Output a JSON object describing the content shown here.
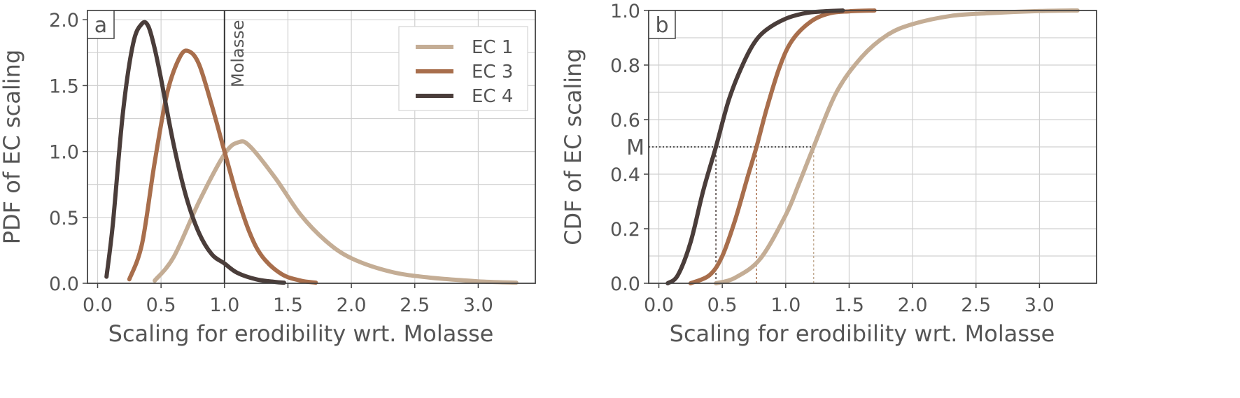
{
  "chart_data": [
    {
      "panel": "a",
      "type": "line",
      "xlabel": "Scaling for erodibility wrt. Molasse",
      "ylabel": "PDF of EC scaling",
      "xlim": [
        -0.08,
        3.45
      ],
      "ylim": [
        0,
        2.07
      ],
      "xticks": [
        0.0,
        0.5,
        1.0,
        1.5,
        2.0,
        2.5,
        3.0
      ],
      "xtick_labels": [
        "0.0",
        "0.5",
        "1.0",
        "1.5",
        "2.0",
        "2.5",
        "3.0"
      ],
      "yticks": [
        0.0,
        0.5,
        1.0,
        1.5,
        2.0
      ],
      "ytick_labels": [
        "0.0",
        "0.5",
        "1.0",
        "1.5",
        "2.0"
      ],
      "minor_grid_y": [
        0.25,
        0.75,
        1.25,
        1.75
      ],
      "vline": {
        "x": 1.0,
        "label": "Molasse"
      },
      "legend": {
        "location": "top-right",
        "entries": [
          "EC 1",
          "EC 3",
          "EC 4"
        ]
      },
      "series": [
        {
          "name": "EC 1",
          "color": "#c4ad95",
          "x": [
            0.45,
            0.6,
            0.8,
            1.0,
            1.11,
            1.2,
            1.4,
            1.6,
            1.8,
            2.0,
            2.3,
            2.6,
            3.0,
            3.3
          ],
          "y": [
            0.02,
            0.2,
            0.62,
            0.98,
            1.07,
            1.04,
            0.8,
            0.52,
            0.32,
            0.19,
            0.09,
            0.045,
            0.015,
            0.005
          ]
        },
        {
          "name": "EC 3",
          "color": "#a86e4c",
          "x": [
            0.25,
            0.35,
            0.45,
            0.55,
            0.65,
            0.72,
            0.8,
            0.9,
            1.0,
            1.1,
            1.2,
            1.3,
            1.45,
            1.6,
            1.72
          ],
          "y": [
            0.03,
            0.3,
            0.92,
            1.45,
            1.72,
            1.76,
            1.66,
            1.35,
            1.0,
            0.66,
            0.38,
            0.2,
            0.07,
            0.02,
            0.005
          ]
        },
        {
          "name": "EC 4",
          "color": "#4a3d3a",
          "x": [
            0.07,
            0.12,
            0.2,
            0.28,
            0.35,
            0.4,
            0.45,
            0.5,
            0.6,
            0.7,
            0.8,
            0.9,
            1.0,
            1.1,
            1.25,
            1.4,
            1.47
          ],
          "y": [
            0.05,
            0.45,
            1.3,
            1.82,
            1.97,
            1.95,
            1.78,
            1.55,
            1.05,
            0.65,
            0.38,
            0.22,
            0.15,
            0.08,
            0.03,
            0.01,
            0.005
          ]
        }
      ]
    },
    {
      "panel": "b",
      "type": "line",
      "xlabel": "Scaling for erodibility wrt. Molasse",
      "ylabel": "CDF of EC scaling",
      "xlim": [
        -0.08,
        3.45
      ],
      "ylim": [
        0,
        1.0
      ],
      "xticks": [
        0.0,
        0.5,
        1.0,
        1.5,
        2.0,
        2.5,
        3.0
      ],
      "xtick_labels": [
        "0.0",
        "0.5",
        "1.0",
        "1.5",
        "2.0",
        "2.5",
        "3.0"
      ],
      "yticks": [
        0.0,
        0.2,
        0.4,
        0.6,
        0.8,
        1.0
      ],
      "ytick_labels": [
        "0.0",
        "0.2",
        "0.4",
        "0.6",
        "0.8",
        "1.0"
      ],
      "minor_grid_y": [
        0.1,
        0.3,
        0.5,
        0.7,
        0.9
      ],
      "median": {
        "label": "M",
        "y": 0.5,
        "x_values": [
          0.45,
          0.77,
          1.22
        ]
      },
      "series": [
        {
          "name": "EC 1",
          "color": "#c4ad95",
          "x": [
            0.45,
            0.6,
            0.8,
            1.0,
            1.1,
            1.22,
            1.4,
            1.6,
            1.8,
            2.0,
            2.3,
            2.6,
            3.0,
            3.3
          ],
          "y": [
            0.0,
            0.02,
            0.09,
            0.25,
            0.36,
            0.5,
            0.7,
            0.83,
            0.91,
            0.95,
            0.98,
            0.99,
            0.998,
            1.0
          ]
        },
        {
          "name": "EC 3",
          "color": "#a86e4c",
          "x": [
            0.25,
            0.4,
            0.5,
            0.6,
            0.7,
            0.77,
            0.85,
            0.95,
            1.05,
            1.2,
            1.35,
            1.5,
            1.7
          ],
          "y": [
            0.0,
            0.03,
            0.1,
            0.23,
            0.39,
            0.5,
            0.64,
            0.79,
            0.89,
            0.96,
            0.99,
            0.997,
            1.0
          ]
        },
        {
          "name": "EC 4",
          "color": "#4a3d3a",
          "x": [
            0.07,
            0.15,
            0.25,
            0.35,
            0.45,
            0.55,
            0.65,
            0.75,
            0.85,
            1.0,
            1.15,
            1.3,
            1.45
          ],
          "y": [
            0.0,
            0.03,
            0.15,
            0.34,
            0.5,
            0.67,
            0.79,
            0.88,
            0.93,
            0.97,
            0.99,
            0.997,
            1.0
          ]
        }
      ]
    }
  ]
}
